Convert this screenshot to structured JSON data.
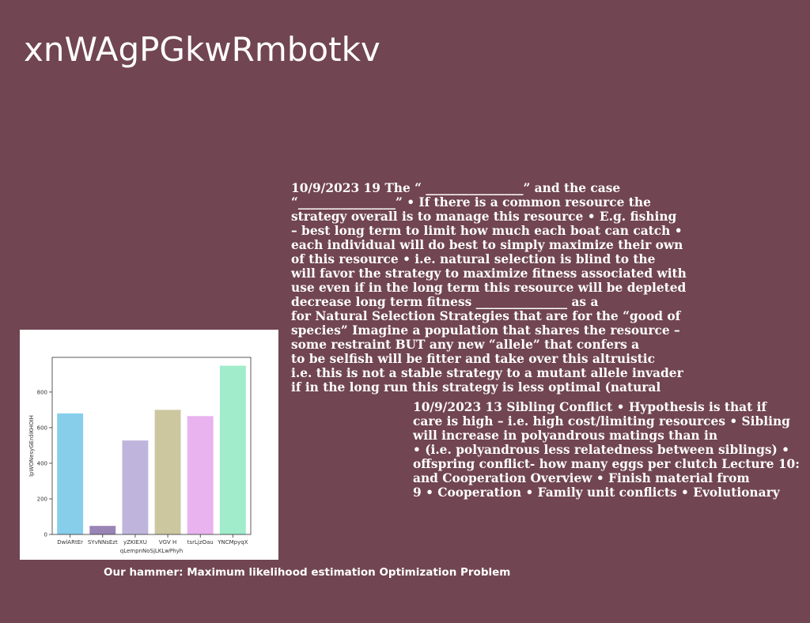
{
  "slide": {
    "title": "xnWAgPGkwRmbotkv",
    "caption": "Our hammer: Maximum likelihood estimation Optimization Problem",
    "text_block_1": [
      "10/9/2023 19 The “ ________________” and the case",
      "“________________” • If there is a common resource the",
      "strategy overall is to manage this resource • E.g. fishing",
      "– best long term to limit how much each boat can catch •",
      "each individual will do best to simply maximize their own",
      "of this resource • i.e. natural selection is blind to the",
      "will favor the strategy to maximize fitness associated with",
      "use even if in the long term this resource will be depleted",
      "decrease long term fitness _______________ as a",
      "for Natural Selection Strategies that are for the “good of",
      "species” Imagine a population that shares the resource –",
      "some restraint BUT any new “allele” that confers a",
      "to be selfish will be fitter and take over this altruistic",
      "i.e. this is not a stable strategy to a mutant allele invader",
      "if in the long run this strategy is less optimal (natural"
    ],
    "text_block_2": [
      "10/9/2023 13 Sibling Conflict • Hypothesis is that if",
      "care is high – i.e. high cost/limiting resources • Sibling",
      "will increase in polyandrous matings than in",
      "• (i.e. polyandrous less relatedness between siblings) •",
      "offspring conflict- how many eggs per clutch Lecture 10:",
      "and Cooperation Overview • Finish material from",
      "9 • Cooperation • Family unit conflicts • Evolutionary"
    ],
    "colors": {
      "background": "#714552",
      "text": "#ffffff"
    }
  },
  "chart_data": {
    "type": "bar",
    "categories": [
      "DwlARtEr",
      "SYvNNsEzt",
      "yZKIEXU",
      "VGV H",
      "tsrLjzOau",
      "YNCMpyqX"
    ],
    "values": [
      680,
      48,
      528,
      700,
      665,
      948
    ],
    "colors": [
      "#87ceeb",
      "#9a84b5",
      "#bfb5dc",
      "#cdc7a0",
      "#e9b3ef",
      "#a0eccb"
    ],
    "title": "",
    "xlabel": "qLempnNoSjLKLwPhyh",
    "ylabel": "lpWONesyGErdiKHOIH",
    "yticks": [
      0,
      200,
      400,
      600,
      800
    ],
    "ylim": [
      0,
      995
    ],
    "grid": false
  }
}
